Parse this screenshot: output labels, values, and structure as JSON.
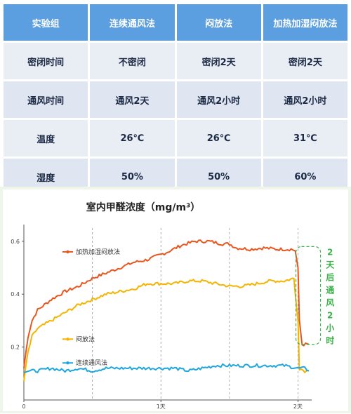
{
  "table": {
    "headers": [
      "实验组",
      "连续通风法",
      "闷放法",
      "加热加湿闷放法"
    ],
    "rows": [
      [
        "密闭时间",
        "不密闭",
        "密闭2天",
        "密闭2天"
      ],
      [
        "通风时间",
        "通风2天",
        "通风2小时",
        "通风2小时"
      ],
      [
        "温度",
        "26℃",
        "26℃",
        "31℃"
      ],
      [
        "湿度",
        "50%",
        "50%",
        "60%"
      ]
    ]
  },
  "chart_data": {
    "type": "line",
    "title": "室内甲醛浓度（mg/m³）",
    "xlabel": "",
    "ylabel": "",
    "xlim": [
      0,
      2.1
    ],
    "ylim": [
      0,
      0.65
    ],
    "x_ticks": [
      {
        "v": 0,
        "label": "0"
      },
      {
        "v": 1,
        "label": "1天"
      },
      {
        "v": 2,
        "label": "2天"
      }
    ],
    "y_ticks": [
      {
        "v": 0.2,
        "label": "0.2"
      },
      {
        "v": 0.4,
        "label": "0.4"
      },
      {
        "v": 0.6,
        "label": "0.6"
      }
    ],
    "series": [
      {
        "name": "加热加湿闷放法",
        "color": "#e8561e",
        "points": [
          [
            0.0,
            0.12
          ],
          [
            0.03,
            0.24
          ],
          [
            0.06,
            0.3
          ],
          [
            0.1,
            0.34
          ],
          [
            0.2,
            0.38
          ],
          [
            0.3,
            0.41
          ],
          [
            0.4,
            0.43
          ],
          [
            0.5,
            0.46
          ],
          [
            0.6,
            0.48
          ],
          [
            0.7,
            0.5
          ],
          [
            0.8,
            0.52
          ],
          [
            0.9,
            0.53
          ],
          [
            1.0,
            0.55
          ],
          [
            1.05,
            0.56
          ],
          [
            1.15,
            0.585
          ],
          [
            1.25,
            0.6
          ],
          [
            1.35,
            0.6
          ],
          [
            1.45,
            0.59
          ],
          [
            1.5,
            0.59
          ],
          [
            1.55,
            0.575
          ],
          [
            1.65,
            0.57
          ],
          [
            1.75,
            0.575
          ],
          [
            1.85,
            0.57
          ],
          [
            1.95,
            0.57
          ],
          [
            1.98,
            0.565
          ],
          [
            2.0,
            0.5
          ],
          [
            2.01,
            0.3
          ],
          [
            2.03,
            0.21
          ],
          [
            2.08,
            0.21
          ]
        ]
      },
      {
        "name": "闷放法",
        "color": "#f4b400",
        "points": [
          [
            0.0,
            0.07
          ],
          [
            0.03,
            0.18
          ],
          [
            0.06,
            0.24
          ],
          [
            0.1,
            0.27
          ],
          [
            0.2,
            0.3
          ],
          [
            0.3,
            0.33
          ],
          [
            0.4,
            0.36
          ],
          [
            0.5,
            0.38
          ],
          [
            0.6,
            0.4
          ],
          [
            0.7,
            0.41
          ],
          [
            0.8,
            0.42
          ],
          [
            0.9,
            0.44
          ],
          [
            1.0,
            0.44
          ],
          [
            1.1,
            0.44
          ],
          [
            1.2,
            0.45
          ],
          [
            1.3,
            0.45
          ],
          [
            1.4,
            0.44
          ],
          [
            1.5,
            0.43
          ],
          [
            1.6,
            0.43
          ],
          [
            1.7,
            0.44
          ],
          [
            1.8,
            0.45
          ],
          [
            1.9,
            0.45
          ],
          [
            1.97,
            0.46
          ],
          [
            2.0,
            0.3
          ],
          [
            2.01,
            0.12
          ],
          [
            2.05,
            0.11
          ],
          [
            2.08,
            0.11
          ]
        ]
      },
      {
        "name": "连续通风法",
        "color": "#1ea6e0",
        "points": [
          [
            0.0,
            0.11
          ],
          [
            0.1,
            0.11
          ],
          [
            0.2,
            0.12
          ],
          [
            0.3,
            0.11
          ],
          [
            0.4,
            0.12
          ],
          [
            0.5,
            0.11
          ],
          [
            0.6,
            0.12
          ],
          [
            0.7,
            0.12
          ],
          [
            0.8,
            0.12
          ],
          [
            0.9,
            0.12
          ],
          [
            1.0,
            0.12
          ],
          [
            1.1,
            0.12
          ],
          [
            1.2,
            0.11
          ],
          [
            1.3,
            0.12
          ],
          [
            1.4,
            0.13
          ],
          [
            1.5,
            0.13
          ],
          [
            1.6,
            0.13
          ],
          [
            1.7,
            0.13
          ],
          [
            1.8,
            0.13
          ],
          [
            1.9,
            0.13
          ],
          [
            2.0,
            0.12
          ],
          [
            2.05,
            0.12
          ],
          [
            2.08,
            0.11
          ]
        ]
      }
    ],
    "annotation": {
      "text": "2天后通风2小时",
      "color": "#3cb34a"
    },
    "grid": {
      "vertical_dashed_at": [
        0.5,
        1,
        1.5,
        2
      ]
    },
    "legend": "inside, next to each line"
  }
}
